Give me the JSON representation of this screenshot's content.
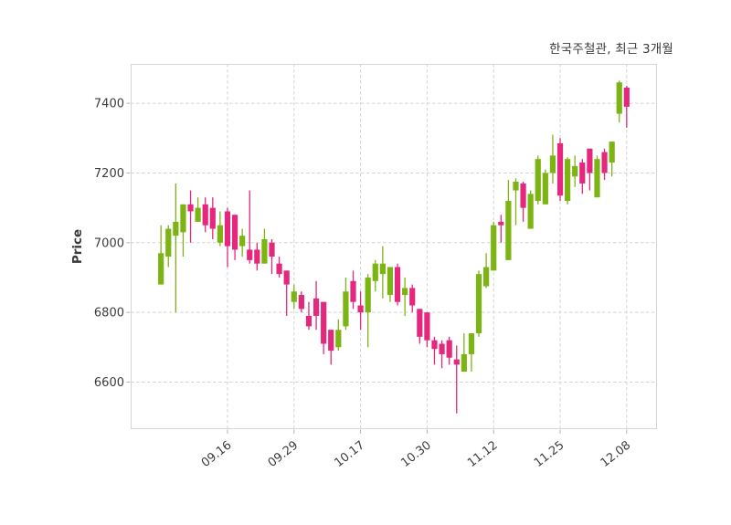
{
  "chart_data": {
    "type": "candlestick",
    "title": "한국주철관, 최근 3개월",
    "series_name": "한국주철관",
    "period_label": "최근 3개월",
    "ylabel": "Price",
    "xlabel": "",
    "y_ticks": [
      6600,
      6800,
      7000,
      7200,
      7400
    ],
    "ylim": [
      6465,
      7513
    ],
    "x_tick_labels": [
      "09.16",
      "09.29",
      "10.17",
      "10.30",
      "11.12",
      "11.25",
      "12.08"
    ],
    "x_tick_indices": [
      9,
      18,
      27,
      36,
      45,
      54,
      63
    ],
    "grid": true,
    "grid_style": "dashed",
    "legend": "none",
    "up_color": "#7cb414",
    "down_color": "#e3287e",
    "grid_color": "#d3d3d3",
    "spine_color": "#d6d6d6",
    "text_color": "#3c3c3c",
    "ohlc_format": [
      "open",
      "high",
      "low",
      "close"
    ],
    "ohlc": [
      [
        6880,
        7050,
        6880,
        6970
      ],
      [
        6960,
        7050,
        6930,
        7040
      ],
      [
        7020,
        7170,
        6800,
        7060
      ],
      [
        7030,
        7110,
        6960,
        7110
      ],
      [
        7110,
        7150,
        7000,
        7090
      ],
      [
        7060,
        7130,
        7060,
        7100
      ],
      [
        7110,
        7130,
        7030,
        7050
      ],
      [
        7100,
        7130,
        7010,
        7040
      ],
      [
        7000,
        7090,
        6990,
        7050
      ],
      [
        7090,
        7100,
        6930,
        6990
      ],
      [
        7080,
        7080,
        6950,
        6980
      ],
      [
        6990,
        7040,
        6960,
        7020
      ],
      [
        6980,
        7150,
        6940,
        6950
      ],
      [
        6980,
        7000,
        6920,
        6940
      ],
      [
        6940,
        7040,
        6940,
        7010
      ],
      [
        7000,
        7010,
        6910,
        6960
      ],
      [
        6940,
        6960,
        6900,
        6910
      ],
      [
        6920,
        6920,
        6790,
        6880
      ],
      [
        6830,
        6880,
        6810,
        6860
      ],
      [
        6850,
        6860,
        6800,
        6810
      ],
      [
        6790,
        6830,
        6750,
        6760
      ],
      [
        6840,
        6890,
        6750,
        6790
      ],
      [
        6830,
        6830,
        6680,
        6710
      ],
      [
        6750,
        6750,
        6650,
        6690
      ],
      [
        6700,
        6780,
        6690,
        6750
      ],
      [
        6760,
        6900,
        6750,
        6860
      ],
      [
        6890,
        6920,
        6810,
        6830
      ],
      [
        6820,
        6860,
        6750,
        6800
      ],
      [
        6800,
        6910,
        6700,
        6900
      ],
      [
        6890,
        6950,
        6860,
        6940
      ],
      [
        6910,
        6990,
        6840,
        6940
      ],
      [
        6850,
        6930,
        6830,
        6930
      ],
      [
        6930,
        6940,
        6820,
        6830
      ],
      [
        6850,
        6900,
        6790,
        6870
      ],
      [
        6870,
        6880,
        6800,
        6820
      ],
      [
        6810,
        6810,
        6710,
        6730
      ],
      [
        6800,
        6800,
        6700,
        6720
      ],
      [
        6720,
        6730,
        6650,
        6695
      ],
      [
        6710,
        6720,
        6640,
        6680
      ],
      [
        6720,
        6730,
        6650,
        6670
      ],
      [
        6665,
        6705,
        6510,
        6650
      ],
      [
        6630,
        6740,
        6630,
        6680
      ],
      [
        6680,
        6740,
        6630,
        6740
      ],
      [
        6740,
        6920,
        6730,
        6910
      ],
      [
        6875,
        6970,
        6870,
        6930
      ],
      [
        6920,
        7060,
        6920,
        7050
      ],
      [
        7060,
        7080,
        7000,
        7050
      ],
      [
        6950,
        7180,
        6950,
        7120
      ],
      [
        7150,
        7185,
        7050,
        7175
      ],
      [
        7170,
        7175,
        7060,
        7100
      ],
      [
        7040,
        7150,
        7040,
        7140
      ],
      [
        7120,
        7250,
        7110,
        7240
      ],
      [
        7110,
        7210,
        7110,
        7200
      ],
      [
        7200,
        7310,
        7170,
        7250
      ],
      [
        7285,
        7300,
        7120,
        7135
      ],
      [
        7120,
        7245,
        7110,
        7240
      ],
      [
        7190,
        7250,
        7160,
        7220
      ],
      [
        7230,
        7240,
        7140,
        7170
      ],
      [
        7270,
        7270,
        7150,
        7200
      ],
      [
        7130,
        7250,
        7130,
        7240
      ],
      [
        7260,
        7270,
        7180,
        7200
      ],
      [
        7230,
        7290,
        7190,
        7290
      ],
      [
        7370,
        7465,
        7345,
        7460
      ],
      [
        7445,
        7450,
        7330,
        7390
      ]
    ]
  }
}
